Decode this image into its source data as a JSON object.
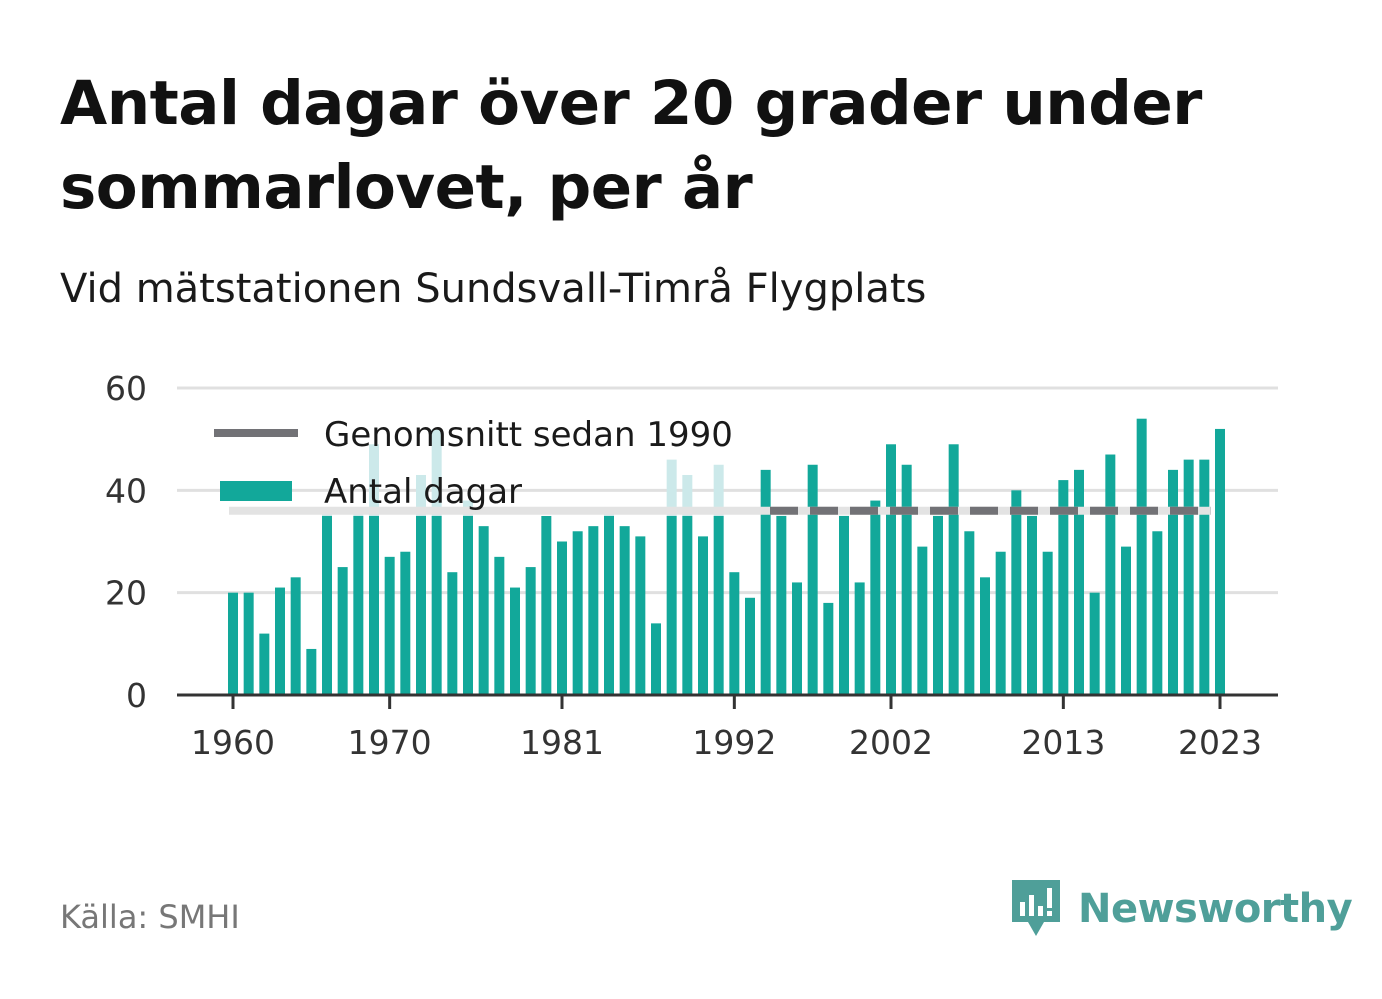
{
  "title": "Antal dagar över 20 grader under sommarlovet, per år",
  "subtitle": "Vid mätstationen Sundsvall-Timrå Flygplats",
  "source": "Källa: SMHI",
  "brand": "Newsworthy",
  "colors": {
    "bar": "#12a89a",
    "bar_faded": "#cce9ea",
    "average": "#727276",
    "average_faded": "#e3e3e3",
    "grid": "#e0e0e0",
    "axis": "#333333",
    "brand": "#4f9f99"
  },
  "chart_data": {
    "type": "bar",
    "x": [
      1960,
      1961,
      1962,
      1963,
      1964,
      1965,
      1966,
      1967,
      1968,
      1969,
      1970,
      1971,
      1972,
      1973,
      1974,
      1975,
      1976,
      1977,
      1978,
      1979,
      1980,
      1981,
      1982,
      1983,
      1984,
      1985,
      1986,
      1987,
      1988,
      1989,
      1990,
      1991,
      1992,
      1993,
      1994,
      1995,
      1996,
      1997,
      1998,
      1999,
      2000,
      2001,
      2002,
      2003,
      2004,
      2005,
      2006,
      2007,
      2008,
      2009,
      2010,
      2011,
      2012,
      2013,
      2014,
      2015,
      2016,
      2017,
      2018,
      2019,
      2020,
      2021,
      2022,
      2023
    ],
    "series": [
      {
        "name": "Antal dagar",
        "values": [
          20,
          20,
          12,
          21,
          23,
          9,
          36,
          25,
          36,
          49,
          27,
          28,
          43,
          52,
          24,
          38,
          33,
          27,
          21,
          25,
          35,
          30,
          32,
          33,
          36,
          33,
          31,
          14,
          46,
          43,
          31,
          45,
          24,
          19,
          44,
          35,
          22,
          45,
          18,
          35,
          22,
          38,
          49,
          45,
          29,
          35,
          49,
          32,
          23,
          28,
          40,
          35,
          28,
          42,
          44,
          20,
          47,
          29,
          54,
          32,
          44,
          46,
          46,
          52
        ]
      },
      {
        "name": "Genomsnitt sedan 1990",
        "value": 36,
        "from": 1990,
        "to": 2022
      }
    ],
    "xticks": [
      1960,
      1970,
      1981,
      1992,
      2002,
      2013,
      2023
    ],
    "yticks": [
      0,
      20,
      40,
      60
    ],
    "ylim": [
      0,
      60
    ],
    "grid": true,
    "legend": "top-left"
  }
}
